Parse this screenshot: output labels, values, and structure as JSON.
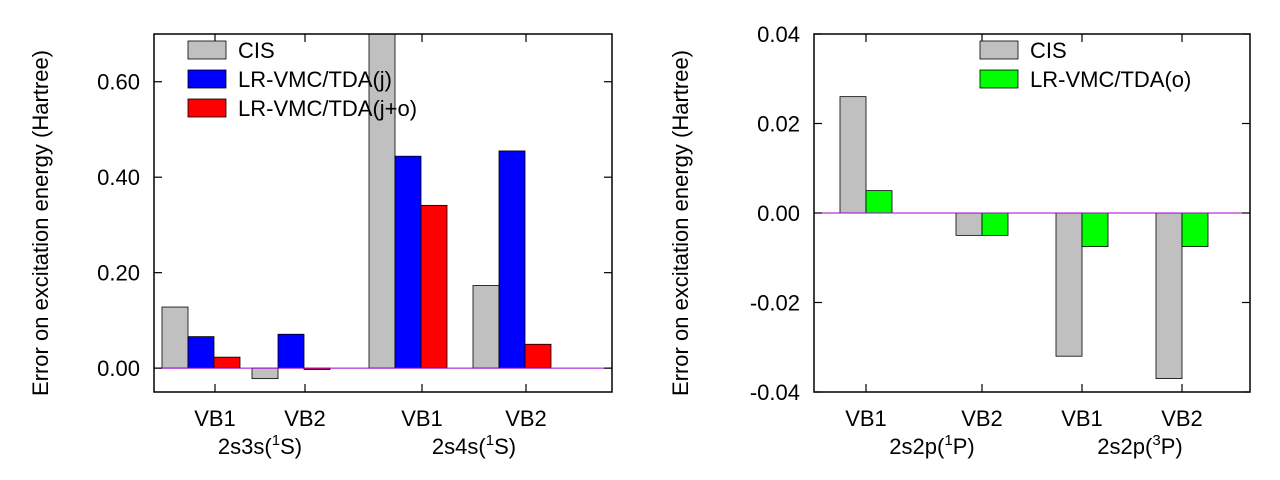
{
  "colors": {
    "cis": "#c0c0c0",
    "jastrow": "#0000ff",
    "jastrow_orbital": "#ff0000",
    "orbital": "#00ff00",
    "zero_line": "#a000d0",
    "frame": "#000000"
  },
  "chart_data": [
    {
      "type": "bar",
      "ylabel": "Error on excitation energy (Hartree)",
      "ylim": [
        -0.05,
        0.7
      ],
      "yticks": [
        {
          "value": 0.0,
          "label": "0.00"
        },
        {
          "value": 0.2,
          "label": "0.20"
        },
        {
          "value": 0.4,
          "label": "0.40"
        },
        {
          "value": 0.6,
          "label": "0.60"
        }
      ],
      "legend_position": "top-left",
      "legend": [
        "CIS",
        "LR-VMC/TDA(j)",
        "LR-VMC/TDA(j+o)"
      ],
      "series_colors": [
        "#c0c0c0",
        "#0000ff",
        "#ff0000"
      ],
      "categories": [
        "VB1",
        "VB2",
        "VB1",
        "VB2"
      ],
      "groups": [
        {
          "label": "2s3s(",
          "sup": "1",
          "tail": "S)",
          "categories": [
            0,
            1
          ]
        },
        {
          "label": "2s4s(",
          "sup": "1",
          "tail": "S)",
          "categories": [
            2,
            3
          ]
        }
      ],
      "series": [
        {
          "name": "CIS",
          "values": [
            0.128,
            -0.022,
            0.72,
            0.173
          ]
        },
        {
          "name": "LR-VMC/TDA(j)",
          "values": [
            0.066,
            0.071,
            0.444,
            0.455
          ]
        },
        {
          "name": "LR-VMC/TDA(j+o)",
          "values": [
            0.023,
            -0.003,
            0.341,
            0.05
          ]
        }
      ]
    },
    {
      "type": "bar",
      "ylabel": "Error on excitation energy (Hartree)",
      "ylim": [
        -0.04,
        0.04
      ],
      "yticks": [
        {
          "value": -0.04,
          "label": "-0.04"
        },
        {
          "value": -0.02,
          "label": "-0.02"
        },
        {
          "value": 0.0,
          "label": "0.00"
        },
        {
          "value": 0.02,
          "label": "0.02"
        },
        {
          "value": 0.04,
          "label": "0.04"
        }
      ],
      "legend_position": "top-right",
      "legend": [
        "CIS",
        "LR-VMC/TDA(o)"
      ],
      "series_colors": [
        "#c0c0c0",
        "#00ff00"
      ],
      "categories": [
        "VB1",
        "VB2",
        "VB1",
        "VB2"
      ],
      "groups": [
        {
          "label": "2s2p(",
          "sup": "1",
          "tail": "P)",
          "categories": [
            0,
            1
          ]
        },
        {
          "label": "2s2p(",
          "sup": "3",
          "tail": "P)",
          "categories": [
            2,
            3
          ]
        }
      ],
      "series": [
        {
          "name": "CIS",
          "values": [
            0.026,
            -0.005,
            -0.032,
            -0.037
          ]
        },
        {
          "name": "LR-VMC/TDA(o)",
          "values": [
            0.005,
            -0.005,
            -0.0075,
            -0.0075
          ]
        }
      ]
    }
  ]
}
